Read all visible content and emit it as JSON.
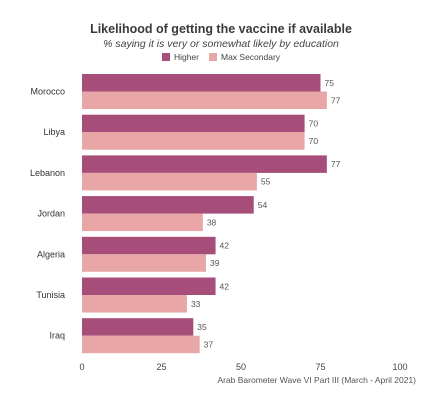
{
  "chart_data": {
    "type": "bar",
    "orientation": "horizontal",
    "title": "Likelihood of getting the vaccine if available",
    "subtitle": "% saying it is very or somewhat likely by education",
    "categories": [
      "Morocco",
      "Libya",
      "Lebanon",
      "Jordan",
      "Algeria",
      "Tunisia",
      "Iraq"
    ],
    "series": [
      {
        "name": "Higher",
        "color": "#a64d79",
        "values": [
          75,
          70,
          77,
          54,
          42,
          42,
          35
        ]
      },
      {
        "name": "Max Secondary",
        "color": "#e8a6a6",
        "values": [
          77,
          70,
          55,
          38,
          39,
          33,
          37
        ]
      }
    ],
    "xlim": [
      0,
      100
    ],
    "xticks": [
      0,
      25,
      50,
      75,
      100
    ],
    "legend_position": "top-center",
    "grid": false,
    "source": "Arab Barometer Wave VI Part III (March - April 2021)"
  }
}
